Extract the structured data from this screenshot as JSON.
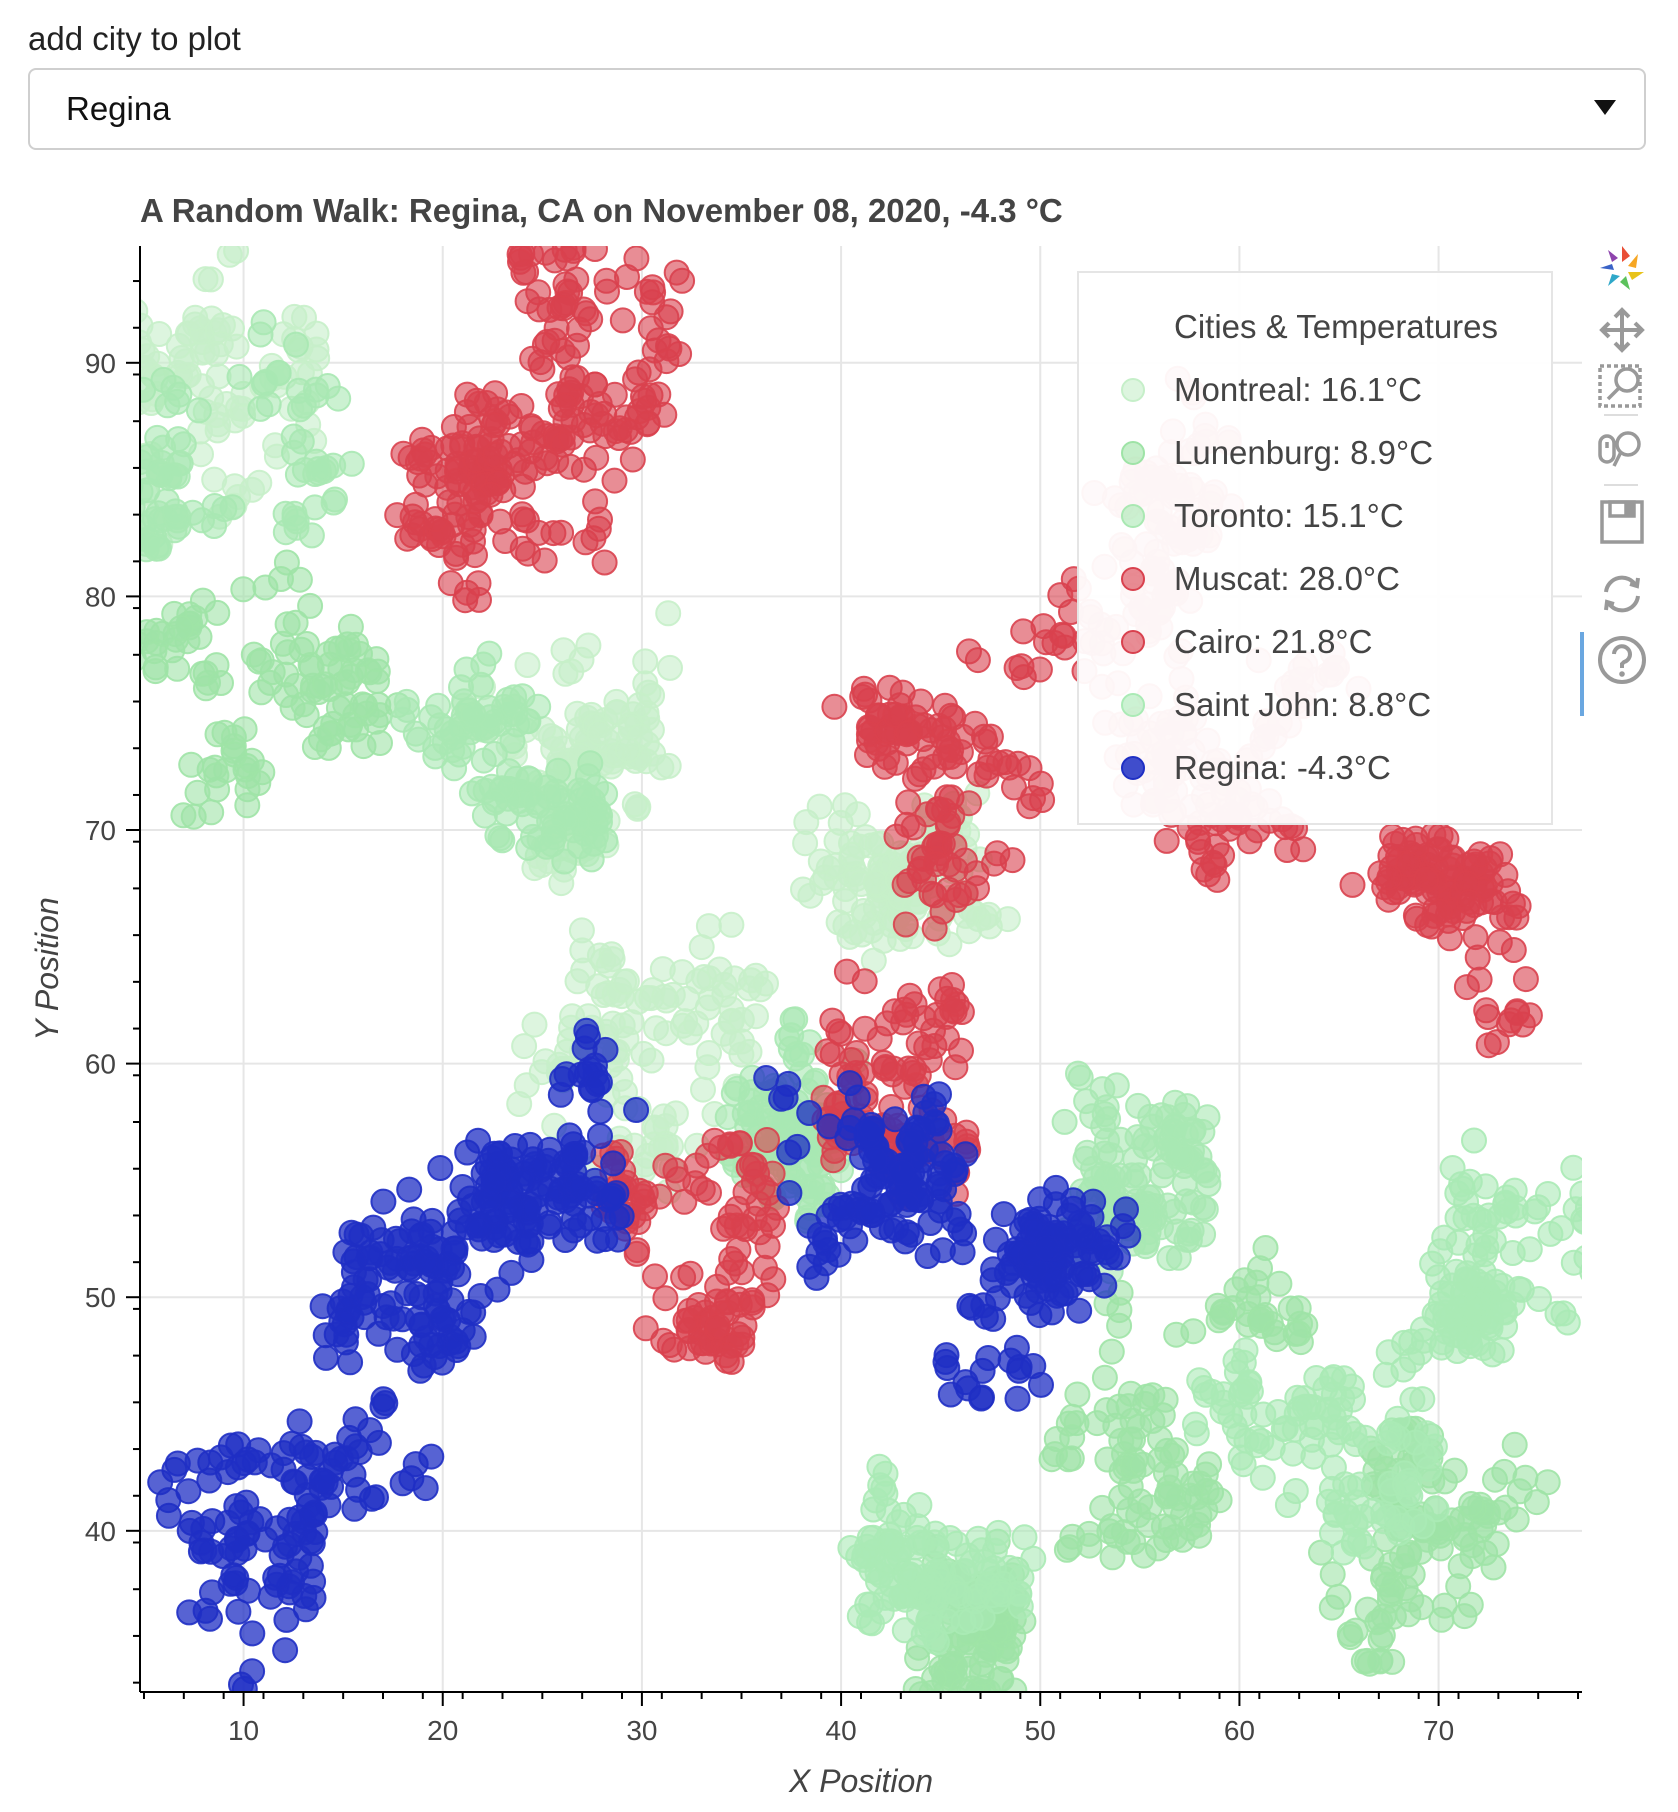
{
  "selector": {
    "label": "add city to plot",
    "selected": "Regina"
  },
  "toolbar": {
    "tools": [
      "bokeh-logo-icon",
      "pan-icon",
      "box-zoom-icon",
      "wheel-zoom-icon",
      "save-icon",
      "reset-icon",
      "help-icon"
    ]
  },
  "chart_data": {
    "type": "scatter",
    "title": "A Random Walk: Regina, CA on November 08, 2020, -4.3 °C",
    "xlabel": "X Position",
    "ylabel": "Y Position",
    "xlim": [
      4.8,
      77.2
    ],
    "ylim": [
      33.1,
      95.0
    ],
    "xticks": [
      10,
      20,
      30,
      40,
      50,
      60,
      70
    ],
    "yticks": [
      40,
      50,
      60,
      70,
      80,
      90
    ],
    "grid": true,
    "legend": {
      "title": "Cities & Temperatures",
      "position": "top-right"
    },
    "series": [
      {
        "name": "Montreal: 16.1°C",
        "temp": 16.1,
        "color": "#c6efc9",
        "regions": [
          [
            10,
            85,
            7
          ],
          [
            28,
            70,
            6
          ],
          [
            42,
            66,
            4
          ],
          [
            30,
            60,
            4
          ]
        ]
      },
      {
        "name": "Lunenburg: 8.9°C",
        "temp": 8.9,
        "color": "#9ee3a6",
        "regions": [
          [
            60,
            48,
            6
          ],
          [
            70,
            40,
            4
          ],
          [
            12,
            78,
            5
          ],
          [
            48,
            35,
            3
          ]
        ]
      },
      {
        "name": "Toronto: 15.1°C",
        "temp": 15.1,
        "color": "#a9e8b2",
        "regions": [
          [
            8,
            90,
            5
          ],
          [
            22,
            75,
            4
          ],
          [
            36,
            58,
            3
          ],
          [
            56,
            55,
            3
          ]
        ]
      },
      {
        "name": "Muscat: 28.0°C",
        "temp": 28.0,
        "color": "#d9414e",
        "regions": [
          [
            30,
            90,
            6
          ],
          [
            50,
            80,
            6
          ],
          [
            62,
            70,
            6
          ],
          [
            40,
            58,
            4
          ]
        ]
      },
      {
        "name": "Cairo: 21.8°C",
        "temp": 21.8,
        "color": "#d9414e",
        "regions": [
          [
            22,
            85,
            5
          ],
          [
            46,
            72,
            4
          ],
          [
            32,
            52,
            3
          ],
          [
            70,
            65,
            3
          ]
        ]
      },
      {
        "name": "Saint John: 8.8°C",
        "temp": 8.8,
        "color": "#aaeab5",
        "regions": [
          [
            74,
            52,
            3
          ],
          [
            45,
            40,
            3
          ],
          [
            64,
            44,
            4
          ]
        ]
      },
      {
        "name": "Regina: -4.3°C",
        "temp": -4.3,
        "color": "#1f2fc4",
        "regions": [
          [
            12,
            40,
            5
          ],
          [
            20,
            50,
            4
          ],
          [
            40,
            53,
            4
          ],
          [
            50,
            50,
            3
          ],
          [
            26,
            57,
            3
          ]
        ]
      }
    ]
  }
}
